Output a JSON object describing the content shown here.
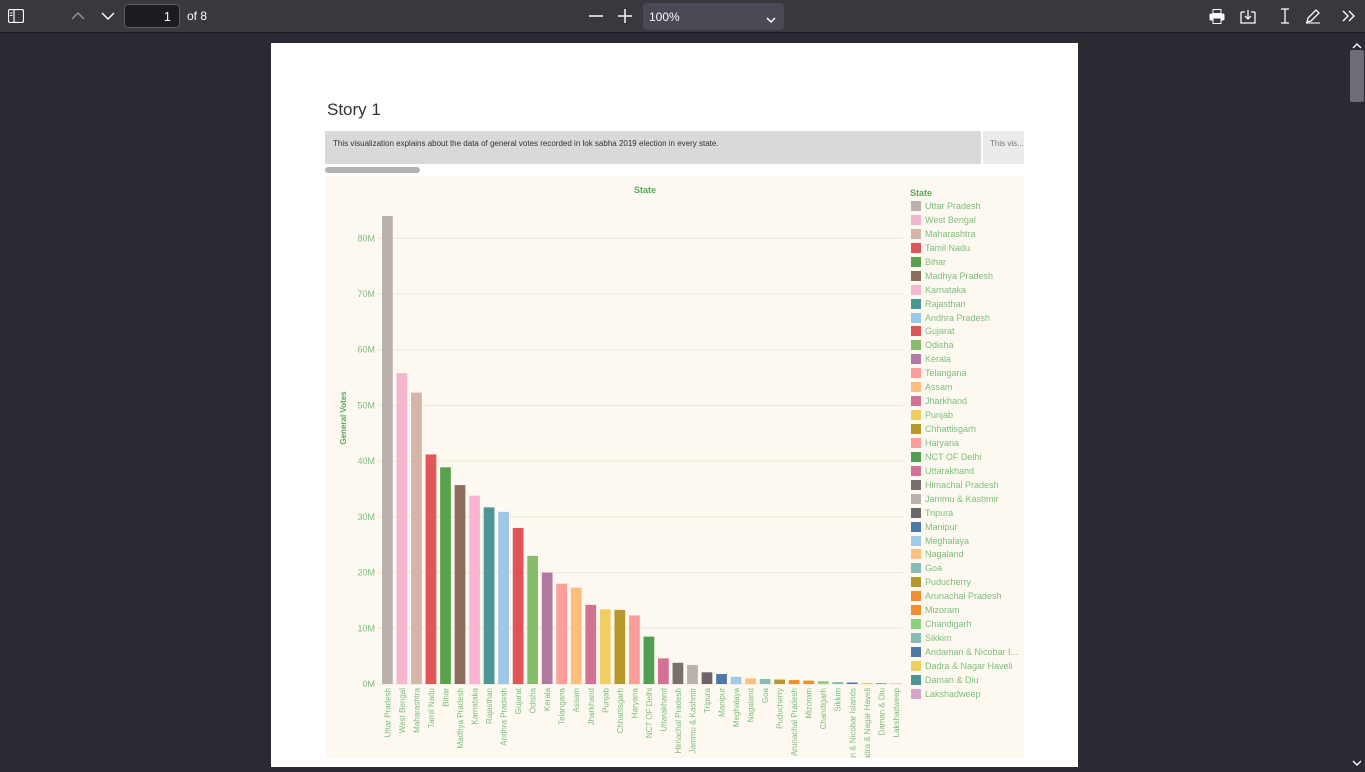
{
  "toolbar": {
    "page_number": "1",
    "page_count_label": "of 8",
    "zoom_value": "100%",
    "icons": [
      "sidebar-toggle-icon",
      "previous-page-icon",
      "next-page-icon",
      "zoom-out-icon",
      "zoom-in-icon",
      "chevron-down-icon",
      "print-icon",
      "download-icon",
      "text-cursor-icon",
      "draw-icon",
      "more-tools-icon"
    ]
  },
  "document": {
    "story_title": "Story 1",
    "captions": [
      "This visualization explains about the data of general votes recorded in lok sabha 2019 election in every state.",
      "This vis..."
    ]
  },
  "chart_data": {
    "type": "bar",
    "title": "State",
    "ylabel": "General Votes",
    "xlabel": "",
    "ylim": [
      0,
      84000000
    ],
    "yticks": [
      0,
      10000000,
      20000000,
      30000000,
      40000000,
      50000000,
      60000000,
      70000000,
      80000000
    ],
    "ytick_labels": [
      "0M",
      "10M",
      "20M",
      "30M",
      "40M",
      "50M",
      "60M",
      "70M",
      "80M"
    ],
    "grid": true,
    "legend_title": "State",
    "legend_position": "right",
    "categories": [
      "Uttar Pradesh",
      "West Bengal",
      "Maharashtra",
      "Tamil Nadu",
      "Bihar",
      "Madhya Pradesh",
      "Karnataka",
      "Rajasthan",
      "Andhra Pradesh",
      "Gujarat",
      "Odisha",
      "Kerala",
      "Telangana",
      "Assam",
      "Jharkhand",
      "Punjab",
      "Chhattisgarh",
      "Haryana",
      "NCT OF Delhi",
      "Uttarakhand",
      "Himachal Pradesh",
      "Jammu & Kashmir",
      "Tripura",
      "Manipur",
      "Meghalaya",
      "Nagaland",
      "Goa",
      "Puducherry",
      "Arunachal Pradesh",
      "Mizoram",
      "Chandigarh",
      "Sikkim",
      "Andaman & Nicobar Islands",
      "Dadra & Nagar Haveli",
      "Daman & Diu",
      "Lakshadweep"
    ],
    "values": [
      84000000,
      55800000,
      52300000,
      41200000,
      38900000,
      35700000,
      33800000,
      31700000,
      30900000,
      28000000,
      23000000,
      20000000,
      18000000,
      17300000,
      14200000,
      13400000,
      13300000,
      12300000,
      8500000,
      4600000,
      3800000,
      3400000,
      2100000,
      1800000,
      1300000,
      1000000,
      900000,
      800000,
      700000,
      600000,
      500000,
      350000,
      270000,
      200000,
      130000,
      50000
    ],
    "colors": [
      "#bab0ac",
      "#f4b6cf",
      "#d4b6a8",
      "#e15759",
      "#59a14f",
      "#8c6d5e",
      "#f7b7d2",
      "#499894",
      "#9dc7e6",
      "#e05457",
      "#86bc6b",
      "#b07aa1",
      "#ff9d9a",
      "#ffbe7d",
      "#d37295",
      "#f1ce63",
      "#b6992d",
      "#ff9d9a",
      "#4e9f4f",
      "#d37295",
      "#79706e",
      "#bab0ac",
      "#6b6667",
      "#4e79a7",
      "#a0cbe8",
      "#ffbe7d",
      "#86bcb6",
      "#b6992d",
      "#f28e2b",
      "#f28e2b",
      "#8cd17d",
      "#86bcb6",
      "#4e79a7",
      "#f1ce63",
      "#499894",
      "#d4a6c8"
    ]
  }
}
